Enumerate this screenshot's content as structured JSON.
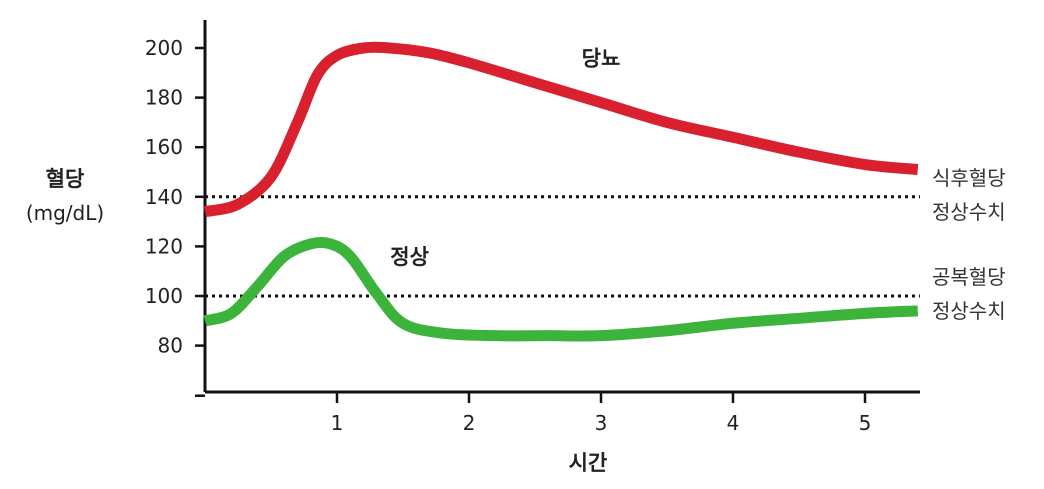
{
  "chart_data": {
    "type": "line",
    "title": "",
    "xlabel": "시간",
    "ylabel": "혈당",
    "ylabel_unit": "(mg/dL)",
    "xlim": [
      0,
      5.5
    ],
    "ylim": [
      60,
      210
    ],
    "x_ticks": [
      1,
      2,
      3,
      4,
      5
    ],
    "y_ticks": [
      80,
      100,
      120,
      140,
      160,
      180,
      200
    ],
    "grid": false,
    "series": [
      {
        "name": "당뇨",
        "color": "#d9202e",
        "x": [
          0,
          0.25,
          0.5,
          0.7,
          0.85,
          1.0,
          1.2,
          1.4,
          1.7,
          2.0,
          2.5,
          3.0,
          3.5,
          4.0,
          4.5,
          5.0,
          5.4
        ],
        "y": [
          134,
          137,
          148,
          170,
          189,
          197,
          200,
          200,
          198,
          194,
          186,
          178,
          170,
          164,
          158,
          153,
          151
        ]
      },
      {
        "name": "정상",
        "color": "#3cb33a",
        "x": [
          0,
          0.2,
          0.4,
          0.6,
          0.8,
          0.95,
          1.1,
          1.3,
          1.5,
          1.8,
          2.2,
          2.6,
          3.0,
          3.5,
          4.0,
          4.5,
          5.0,
          5.4
        ],
        "y": [
          90,
          93,
          104,
          116,
          121,
          121,
          116,
          101,
          89,
          85,
          84,
          84,
          84,
          86,
          89,
          91,
          93,
          94
        ]
      }
    ],
    "reference_lines": [
      {
        "y": 140,
        "label_line1": "식후혈당",
        "label_line2": "정상수치"
      },
      {
        "y": 100,
        "label_line1": "공복혈당",
        "label_line2": "정상수치"
      }
    ],
    "annotations": [
      {
        "text": "당뇨",
        "x": 3.0,
        "y": 193
      },
      {
        "text": "정상",
        "x": 1.55,
        "y": 113
      }
    ]
  }
}
